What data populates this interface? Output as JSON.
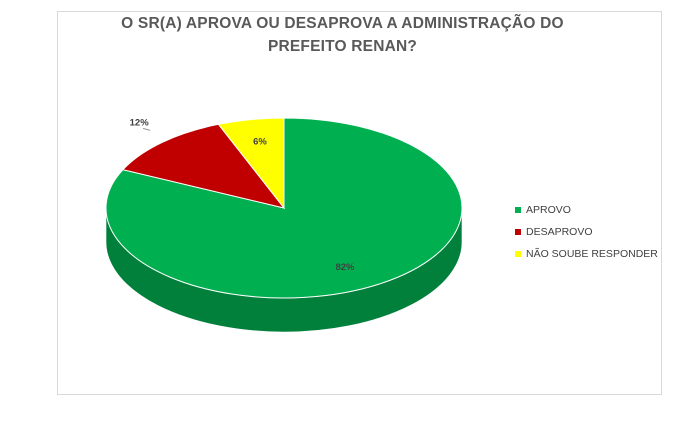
{
  "chart_data": {
    "type": "pie",
    "title_lines": [
      "O SR(A) APROVA OU DESAPROVA A ADMINISTRAÇÃO DO",
      "PREFEITO RENAN?"
    ],
    "style": "3d",
    "slices": [
      {
        "label": "APROVO",
        "value": 82,
        "data_label": "82%",
        "color": "#00b050",
        "side_color": "#00803a"
      },
      {
        "label": "DESAPROVO",
        "value": 12,
        "data_label": "12%",
        "color": "#c00000",
        "side_color": "#8a0000"
      },
      {
        "label": "NÃO SOUBE RESPONDER",
        "value": 6,
        "data_label": "6%",
        "color": "#ffff00",
        "side_color": "#c8c800"
      }
    ],
    "legend_position": "right"
  }
}
